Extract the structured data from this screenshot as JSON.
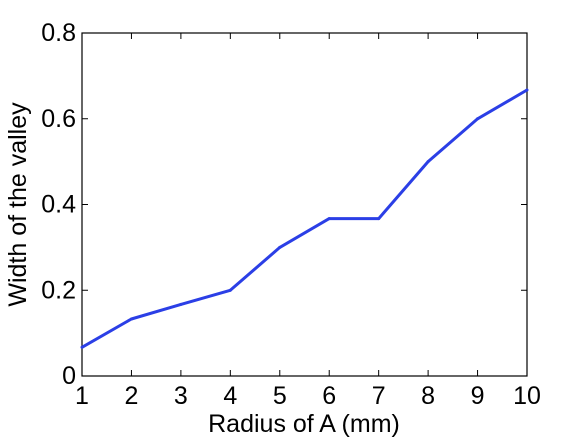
{
  "chart_data": {
    "type": "line",
    "title": "",
    "xlabel": "Radius of A (mm)",
    "ylabel": "Width of the valley",
    "xlim": [
      1,
      10
    ],
    "ylim": [
      0,
      0.8
    ],
    "xticks": [
      "1",
      "2",
      "3",
      "4",
      "5",
      "6",
      "7",
      "8",
      "9",
      "10"
    ],
    "yticks": [
      "0",
      "0.2",
      "0.4",
      "0.6",
      "0.8"
    ],
    "grid": false,
    "series": [
      {
        "color": "#2b3fe6",
        "x": [
          1,
          2,
          3,
          4,
          5,
          6,
          7,
          8,
          9,
          10
        ],
        "y": [
          0.067,
          0.133,
          0.167,
          0.2,
          0.3,
          0.367,
          0.367,
          0.5,
          0.6,
          0.667
        ]
      }
    ]
  }
}
